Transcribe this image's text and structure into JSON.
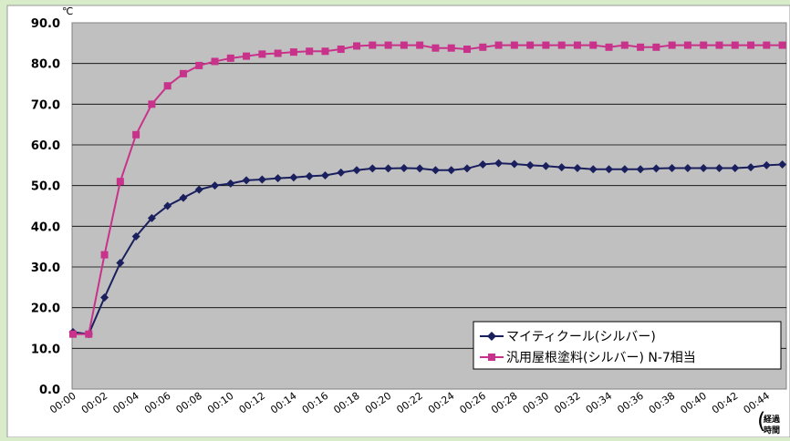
{
  "chart_data": {
    "type": "line",
    "unit_label": "℃",
    "x_axis_label_line1": "経過",
    "x_axis_label_line2": "時間",
    "ylim": [
      0,
      90
    ],
    "y_ticks": [
      "0.0",
      "10.0",
      "20.0",
      "30.0",
      "40.0",
      "50.0",
      "60.0",
      "70.0",
      "80.0",
      "90.0"
    ],
    "x_tick_labels": [
      "00:00",
      "00:02",
      "00:04",
      "00:06",
      "00:08",
      "00:10",
      "00:12",
      "00:14",
      "00:16",
      "00:18",
      "00:20",
      "00:22",
      "00:24",
      "00:26",
      "00:28",
      "00:30",
      "00:32",
      "00:34",
      "00:36",
      "00:38",
      "00:40",
      "00:42",
      "00:44"
    ],
    "x": [
      "00:00",
      "00:01",
      "00:02",
      "00:03",
      "00:04",
      "00:05",
      "00:06",
      "00:07",
      "00:08",
      "00:09",
      "00:10",
      "00:11",
      "00:12",
      "00:13",
      "00:14",
      "00:15",
      "00:16",
      "00:17",
      "00:18",
      "00:19",
      "00:20",
      "00:21",
      "00:22",
      "00:23",
      "00:24",
      "00:25",
      "00:26",
      "00:27",
      "00:28",
      "00:29",
      "00:30",
      "00:31",
      "00:32",
      "00:33",
      "00:34",
      "00:35",
      "00:36",
      "00:37",
      "00:38",
      "00:39",
      "00:40",
      "00:41",
      "00:42",
      "00:43",
      "00:44",
      "00:45"
    ],
    "grid": true,
    "legend_position": "bottom-right",
    "series": [
      {
        "name": "マイティクール(シルバー)",
        "color": "#1a1f5e",
        "marker": "diamond",
        "values": [
          14.0,
          13.5,
          22.5,
          31.0,
          37.5,
          42.0,
          45.0,
          47.0,
          49.0,
          50.0,
          50.5,
          51.3,
          51.5,
          51.8,
          52.0,
          52.3,
          52.5,
          53.2,
          53.8,
          54.2,
          54.2,
          54.3,
          54.2,
          53.8,
          53.8,
          54.2,
          55.2,
          55.5,
          55.3,
          55.0,
          54.8,
          54.5,
          54.3,
          54.0,
          54.0,
          54.0,
          54.0,
          54.2,
          54.3,
          54.3,
          54.3,
          54.3,
          54.3,
          54.5,
          55.0,
          55.2
        ]
      },
      {
        "name": "汎用屋根塗料(シルバー) N-7相当",
        "color": "#c8328a",
        "marker": "square",
        "values": [
          13.5,
          13.5,
          33.0,
          51.0,
          62.5,
          70.0,
          74.5,
          77.5,
          79.5,
          80.5,
          81.3,
          81.8,
          82.3,
          82.5,
          82.8,
          83.0,
          83.0,
          83.5,
          84.3,
          84.5,
          84.5,
          84.5,
          84.5,
          83.8,
          83.8,
          83.5,
          84.0,
          84.5,
          84.5,
          84.5,
          84.5,
          84.5,
          84.5,
          84.5,
          84.0,
          84.5,
          84.0,
          84.0,
          84.5,
          84.5,
          84.5,
          84.5,
          84.5,
          84.5,
          84.5,
          84.5
        ]
      }
    ]
  }
}
